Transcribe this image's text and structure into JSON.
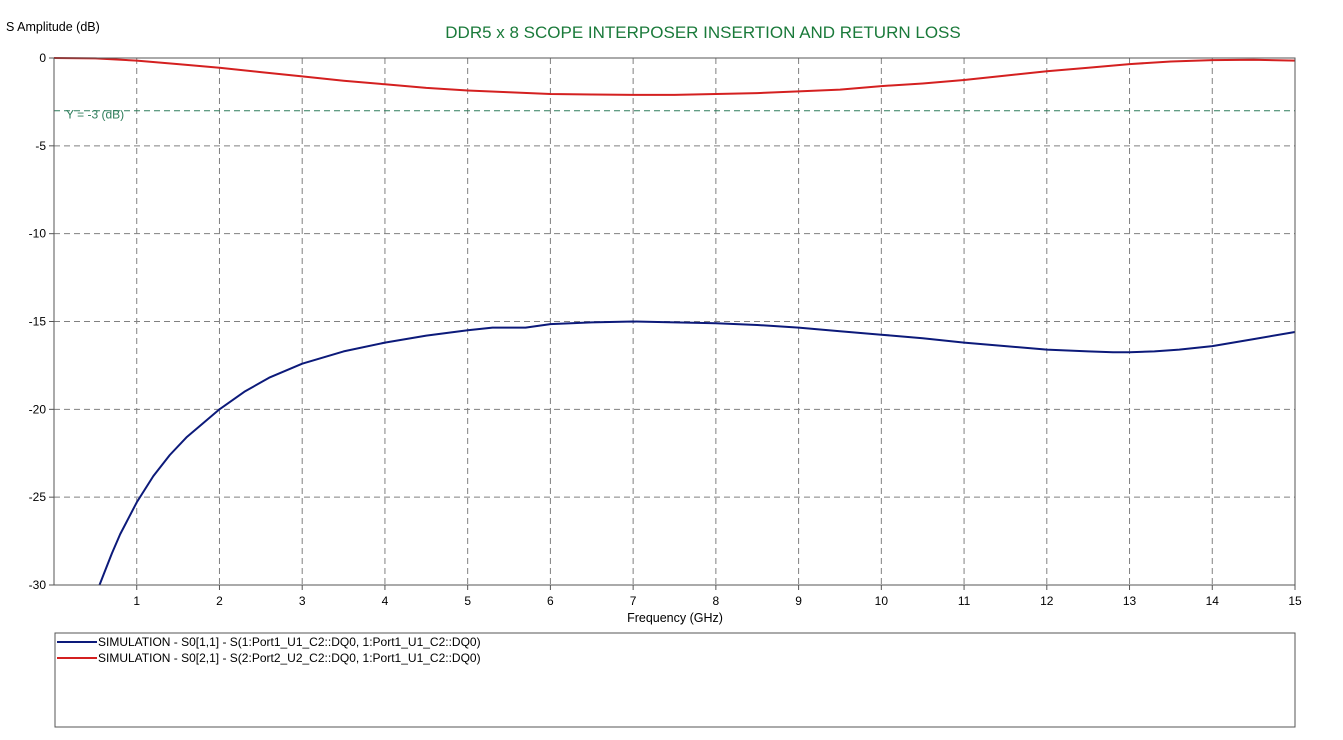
{
  "chart_data": {
    "type": "line",
    "title": "DDR5 x 8 SCOPE INTERPOSER INSERTION AND RETURN LOSS",
    "xlabel": "Frequency (GHz)",
    "ylabel": "S Amplitude (dB)",
    "xlim": [
      0,
      15
    ],
    "ylim": [
      -30,
      0
    ],
    "xticks": [
      1,
      2,
      3,
      4,
      5,
      6,
      7,
      8,
      9,
      10,
      11,
      12,
      13,
      14,
      15
    ],
    "yticks": [
      0,
      -5,
      -10,
      -15,
      -20,
      -25,
      -30
    ],
    "grid": true,
    "legend_position": "bottom",
    "reference_line": {
      "y": -3,
      "label": "Y = -3 (dB)",
      "color": "#2e7d5b"
    },
    "series": [
      {
        "name": "SIMULATION - S0[1,1] - S(1:Port1_U1_C2::DQ0, 1:Port1_U1_C2::DQ0)",
        "color": "#0c1a7a",
        "x": [
          0.55,
          0.6,
          0.7,
          0.8,
          0.9,
          1.0,
          1.2,
          1.4,
          1.6,
          1.8,
          2.0,
          2.3,
          2.6,
          3.0,
          3.5,
          4.0,
          4.5,
          5.0,
          5.3,
          5.7,
          6.0,
          6.5,
          7.0,
          7.5,
          8.0,
          8.5,
          9.0,
          9.5,
          10.0,
          10.5,
          11.0,
          11.5,
          12.0,
          12.5,
          12.8,
          13.0,
          13.3,
          13.6,
          14.0,
          14.5,
          15.0
        ],
        "y": [
          -30.0,
          -29.4,
          -28.2,
          -27.1,
          -26.2,
          -25.3,
          -23.8,
          -22.6,
          -21.6,
          -20.8,
          -20.0,
          -19.0,
          -18.2,
          -17.4,
          -16.7,
          -16.2,
          -15.8,
          -15.5,
          -15.35,
          -15.35,
          -15.15,
          -15.05,
          -15.0,
          -15.05,
          -15.1,
          -15.2,
          -15.35,
          -15.55,
          -15.75,
          -15.95,
          -16.2,
          -16.4,
          -16.6,
          -16.7,
          -16.75,
          -16.75,
          -16.7,
          -16.6,
          -16.4,
          -16.0,
          -15.6
        ]
      },
      {
        "name": "SIMULATION - S0[2,1] - S(2:Port2_U2_C2::DQ0, 1:Port1_U1_C2::DQ0)",
        "color": "#d42020",
        "x": [
          0.0,
          0.5,
          1.0,
          1.5,
          2.0,
          2.5,
          3.0,
          3.5,
          4.0,
          4.5,
          5.0,
          5.5,
          6.0,
          6.5,
          7.0,
          7.5,
          8.0,
          8.5,
          9.0,
          9.5,
          10.0,
          10.5,
          11.0,
          11.5,
          12.0,
          12.5,
          13.0,
          13.5,
          14.0,
          14.5,
          15.0
        ],
        "y": [
          0.0,
          -0.02,
          -0.15,
          -0.35,
          -0.55,
          -0.8,
          -1.05,
          -1.3,
          -1.5,
          -1.7,
          -1.85,
          -1.95,
          -2.05,
          -2.08,
          -2.1,
          -2.1,
          -2.05,
          -2.0,
          -1.9,
          -1.8,
          -1.6,
          -1.45,
          -1.25,
          -1.0,
          -0.75,
          -0.55,
          -0.35,
          -0.2,
          -0.12,
          -0.1,
          -0.15
        ]
      }
    ]
  }
}
